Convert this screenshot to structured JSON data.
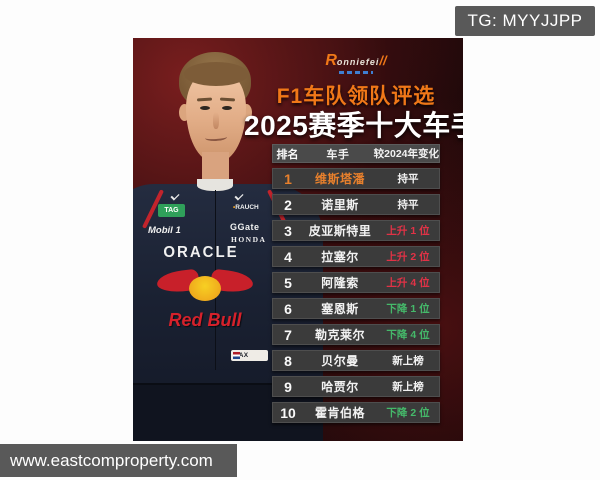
{
  "overlays": {
    "tg_badge": "TG: MYYJJPP",
    "url_bar": "www.eastcomproperty.com"
  },
  "poster": {
    "logo": {
      "initial": "R",
      "rest": "onniefei",
      "slashes": "//"
    },
    "title_line1": "F1车队领队评选",
    "title_line2": "2025赛季十大车手",
    "table": {
      "headers": [
        "排名",
        "车手",
        "较2024年变化"
      ],
      "rows": [
        {
          "rank": "1",
          "driver": "维斯塔潘",
          "change": "持平",
          "trend": "same",
          "highlight": true
        },
        {
          "rank": "2",
          "driver": "诺里斯",
          "change": "持平",
          "trend": "same",
          "highlight": false
        },
        {
          "rank": "3",
          "driver": "皮亚斯特里",
          "change": "上升 1 位",
          "trend": "up",
          "highlight": false
        },
        {
          "rank": "4",
          "driver": "拉塞尔",
          "change": "上升 2 位",
          "trend": "up",
          "highlight": false
        },
        {
          "rank": "5",
          "driver": "阿隆索",
          "change": "上升 4 位",
          "trend": "up",
          "highlight": false
        },
        {
          "rank": "6",
          "driver": "塞恩斯",
          "change": "下降 1 位",
          "trend": "down",
          "highlight": false
        },
        {
          "rank": "7",
          "driver": "勒克莱尔",
          "change": "下降 4 位",
          "trend": "down",
          "highlight": false
        },
        {
          "rank": "8",
          "driver": "贝尔曼",
          "change": "新上榜",
          "trend": "new",
          "highlight": false
        },
        {
          "rank": "9",
          "driver": "哈贾尔",
          "change": "新上榜",
          "trend": "new",
          "highlight": false
        },
        {
          "rank": "10",
          "driver": "霍肯伯格",
          "change": "下降 2 位",
          "trend": "down",
          "highlight": false
        }
      ]
    },
    "suit": {
      "sponsor_tag": "TAG",
      "sponsor_mobil": "Mobil 1",
      "sponsor_rauch_dot": "•",
      "sponsor_rauch": "RAUCH",
      "sponsor_ggate": "GGate",
      "sponsor_honda": "HONDA",
      "sponsor_oracle": "ORACLE",
      "redbull_text": "Red Bull",
      "name_tag": "MAX"
    },
    "colors": {
      "accent_orange": "#f07818",
      "rank1_orange": "#e8802c",
      "up_red": "#e13246",
      "down_green": "#45b96a",
      "neutral_white": "#f2f2f2",
      "row_gray": "#3b3b3b",
      "badge_gray": "#595959"
    }
  },
  "chart_data": {
    "type": "table",
    "title": "2025赛季十大车手",
    "subtitle": "F1车队领队评选",
    "columns": [
      "排名",
      "车手",
      "较2024年变化"
    ],
    "rows": [
      [
        "1",
        "维斯塔潘",
        "持平"
      ],
      [
        "2",
        "诺里斯",
        "持平"
      ],
      [
        "3",
        "皮亚斯特里",
        "上升 1 位"
      ],
      [
        "4",
        "拉塞尔",
        "上升 2 位"
      ],
      [
        "5",
        "阿隆索",
        "上升 4 位"
      ],
      [
        "6",
        "塞恩斯",
        "下降 1 位"
      ],
      [
        "7",
        "勒克莱尔",
        "下降 4 位"
      ],
      [
        "8",
        "贝尔曼",
        "新上榜"
      ],
      [
        "9",
        "哈贾尔",
        "新上榜"
      ],
      [
        "10",
        "霍肯伯格",
        "下降 2 位"
      ]
    ]
  }
}
